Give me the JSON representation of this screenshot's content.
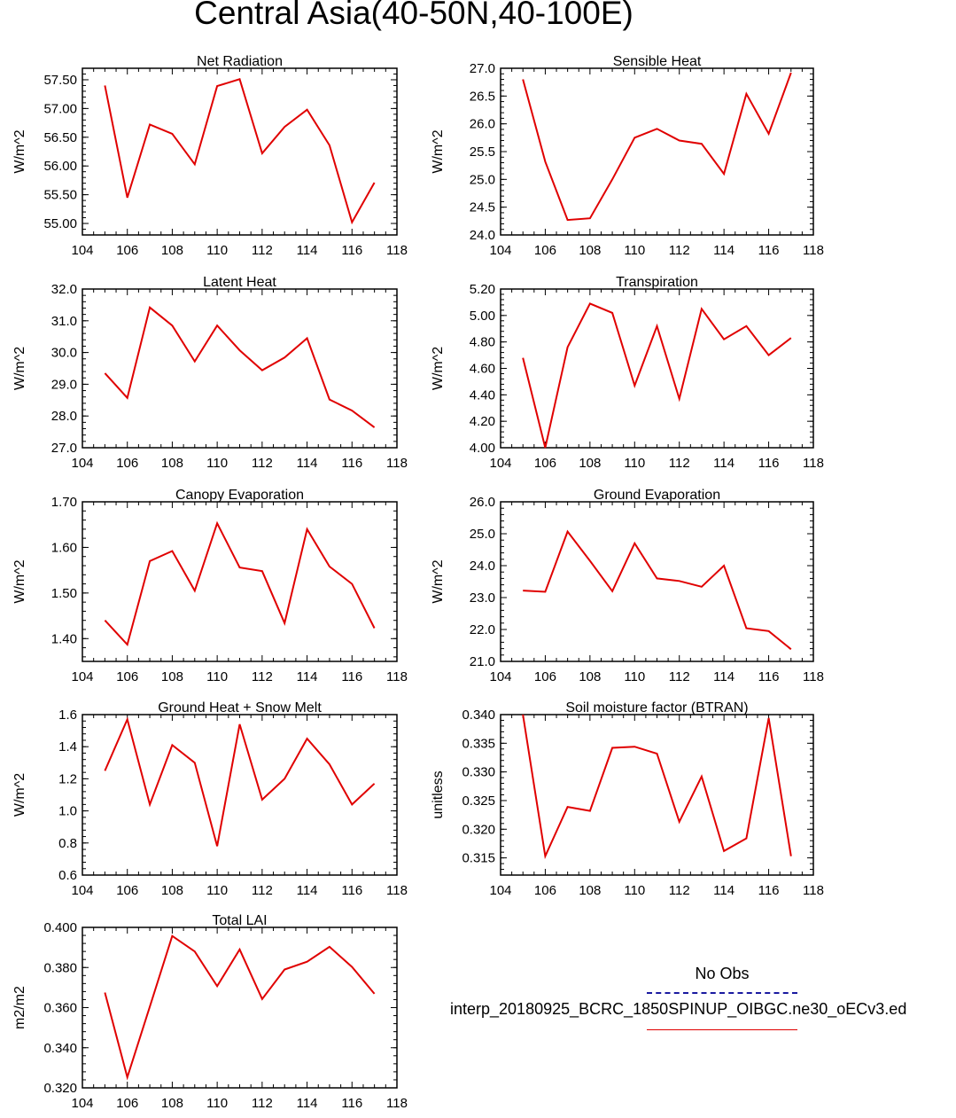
{
  "title": "Central Asia(40-50N,40-100E)",
  "legend": {
    "obs_label": "No Obs",
    "series_label": "interp_20180925_BCRC_1850SPINUP_OIBGC.ne30_oECv3.ed",
    "obs_color": "#1a1aa0",
    "series_color": "#e00000"
  },
  "chart_data": [
    {
      "type": "line",
      "title": "Net Radiation",
      "ylabel": "W/m^2",
      "xlim": [
        104,
        118
      ],
      "ylim": [
        54.8,
        57.7
      ],
      "xticks": [
        "104",
        "106",
        "108",
        "110",
        "112",
        "114",
        "116",
        "118"
      ],
      "yticks": [
        "55.00",
        "55.50",
        "56.00",
        "56.50",
        "57.00",
        "57.50"
      ],
      "x": [
        105,
        106,
        107,
        108,
        109,
        110,
        111,
        112,
        113,
        114,
        115,
        116,
        117
      ],
      "values": [
        57.4,
        55.45,
        56.72,
        56.56,
        56.03,
        57.39,
        57.51,
        56.22,
        56.68,
        56.98,
        56.36,
        55.02,
        55.71
      ]
    },
    {
      "type": "line",
      "title": "Sensible Heat",
      "ylabel": "W/m^2",
      "xlim": [
        104,
        118
      ],
      "ylim": [
        24.0,
        27.0
      ],
      "xticks": [
        "104",
        "106",
        "108",
        "110",
        "112",
        "114",
        "116",
        "118"
      ],
      "yticks": [
        "24.0",
        "24.5",
        "25.0",
        "25.5",
        "26.0",
        "26.5",
        "27.0"
      ],
      "x": [
        105,
        106,
        107,
        108,
        109,
        110,
        111,
        112,
        113,
        114,
        115,
        116,
        117
      ],
      "values": [
        26.8,
        25.32,
        24.27,
        24.3,
        25.0,
        25.75,
        25.91,
        25.7,
        25.64,
        25.1,
        26.54,
        25.82,
        26.92
      ]
    },
    {
      "type": "line",
      "title": "Latent Heat",
      "ylabel": "W/m^2",
      "xlim": [
        104,
        118
      ],
      "ylim": [
        27.0,
        32.0
      ],
      "xticks": [
        "104",
        "106",
        "108",
        "110",
        "112",
        "114",
        "116",
        "118"
      ],
      "yticks": [
        "27.0",
        "28.0",
        "29.0",
        "30.0",
        "31.0",
        "32.0"
      ],
      "x": [
        105,
        106,
        107,
        108,
        109,
        110,
        111,
        112,
        113,
        114,
        115,
        116,
        117
      ],
      "values": [
        29.35,
        28.57,
        31.42,
        30.85,
        29.72,
        30.85,
        30.07,
        29.44,
        29.84,
        30.45,
        28.52,
        28.17,
        27.64
      ]
    },
    {
      "type": "line",
      "title": "Transpiration",
      "ylabel": "W/m^2",
      "xlim": [
        104,
        118
      ],
      "ylim": [
        4.0,
        5.2
      ],
      "xticks": [
        "104",
        "106",
        "108",
        "110",
        "112",
        "114",
        "116",
        "118"
      ],
      "yticks": [
        "4.00",
        "4.20",
        "4.40",
        "4.60",
        "4.80",
        "5.00",
        "5.20"
      ],
      "x": [
        105,
        106,
        107,
        108,
        109,
        110,
        111,
        112,
        113,
        114,
        115,
        116,
        117
      ],
      "values": [
        4.68,
        4.0,
        4.76,
        5.09,
        5.02,
        4.47,
        4.92,
        4.37,
        5.05,
        4.82,
        4.92,
        4.7,
        4.83
      ]
    },
    {
      "type": "line",
      "title": "Canopy Evaporation",
      "ylabel": "W/m^2",
      "xlim": [
        104,
        118
      ],
      "ylim": [
        1.35,
        1.7
      ],
      "xticks": [
        "104",
        "106",
        "108",
        "110",
        "112",
        "114",
        "116",
        "118"
      ],
      "yticks": [
        "1.40",
        "1.50",
        "1.60",
        "1.70"
      ],
      "x": [
        105,
        106,
        107,
        108,
        109,
        110,
        111,
        112,
        113,
        114,
        115,
        116,
        117
      ],
      "values": [
        1.44,
        1.387,
        1.57,
        1.592,
        1.505,
        1.653,
        1.556,
        1.548,
        1.434,
        1.64,
        1.558,
        1.52,
        1.423
      ]
    },
    {
      "type": "line",
      "title": "Ground Evaporation",
      "ylabel": "W/m^2",
      "xlim": [
        104,
        118
      ],
      "ylim": [
        21.0,
        26.0
      ],
      "xticks": [
        "104",
        "106",
        "108",
        "110",
        "112",
        "114",
        "116",
        "118"
      ],
      "yticks": [
        "21.0",
        "22.0",
        "23.0",
        "24.0",
        "25.0",
        "26.0"
      ],
      "x": [
        105,
        106,
        107,
        108,
        109,
        110,
        111,
        112,
        113,
        114,
        115,
        116,
        117
      ],
      "values": [
        23.22,
        23.18,
        25.07,
        24.15,
        23.2,
        24.7,
        23.6,
        23.52,
        23.34,
        24.0,
        22.04,
        21.95,
        21.38
      ]
    },
    {
      "type": "line",
      "title": "Ground Heat + Snow Melt",
      "ylabel": "W/m^2",
      "xlim": [
        104,
        118
      ],
      "ylim": [
        0.6,
        1.6
      ],
      "xticks": [
        "104",
        "106",
        "108",
        "110",
        "112",
        "114",
        "116",
        "118"
      ],
      "yticks": [
        "0.6",
        "0.8",
        "1.0",
        "1.2",
        "1.4",
        "1.6"
      ],
      "x": [
        105,
        106,
        107,
        108,
        109,
        110,
        111,
        112,
        113,
        114,
        115,
        116,
        117
      ],
      "values": [
        1.25,
        1.57,
        1.04,
        1.41,
        1.3,
        0.78,
        1.54,
        1.07,
        1.2,
        1.45,
        1.29,
        1.04,
        1.17
      ]
    },
    {
      "type": "line",
      "title": "Soil moisture factor (BTRAN)",
      "ylabel": "unitless",
      "xlim": [
        104,
        118
      ],
      "ylim": [
        0.312,
        0.34
      ],
      "xticks": [
        "104",
        "106",
        "108",
        "110",
        "112",
        "114",
        "116",
        "118"
      ],
      "yticks": [
        "0.315",
        "0.320",
        "0.325",
        "0.330",
        "0.335",
        "0.340"
      ],
      "x": [
        105,
        106,
        107,
        108,
        109,
        110,
        111,
        112,
        113,
        114,
        115,
        116,
        117
      ],
      "values": [
        0.34,
        0.3153,
        0.3239,
        0.3232,
        0.3342,
        0.3344,
        0.3332,
        0.3213,
        0.3292,
        0.3162,
        0.3184,
        0.3394,
        0.3153
      ]
    },
    {
      "type": "line",
      "title": "Total LAI",
      "ylabel": "m2/m2",
      "xlim": [
        104,
        118
      ],
      "ylim": [
        0.32,
        0.4
      ],
      "xticks": [
        "104",
        "106",
        "108",
        "110",
        "112",
        "114",
        "116",
        "118"
      ],
      "yticks": [
        "0.320",
        "0.340",
        "0.360",
        "0.380",
        "0.400"
      ],
      "x": [
        105,
        106,
        107,
        108,
        109,
        110,
        111,
        112,
        113,
        114,
        115,
        116,
        117
      ],
      "values": [
        0.3675,
        0.3253,
        0.3605,
        0.3957,
        0.388,
        0.3707,
        0.389,
        0.3643,
        0.379,
        0.3829,
        0.3903,
        0.3803,
        0.3669
      ]
    }
  ]
}
